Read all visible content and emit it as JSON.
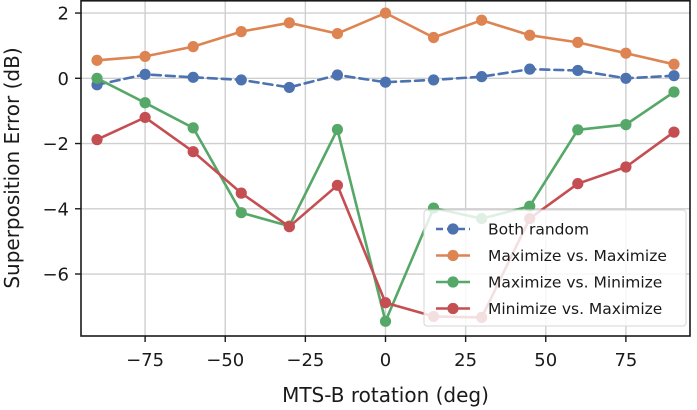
{
  "chart_data": {
    "type": "line",
    "title": "",
    "xlabel": "MTS-B rotation (deg)",
    "ylabel": "Superposition Error (dB)",
    "xlim": [
      -95,
      95
    ],
    "ylim": [
      -7.9,
      2.4
    ],
    "xticks": [
      -75,
      -50,
      -25,
      0,
      25,
      50,
      75
    ],
    "xtick_labels": [
      "−75",
      "−50",
      "−25",
      "0",
      "25",
      "50",
      "75"
    ],
    "yticks": [
      2,
      0,
      -2,
      -4,
      -6
    ],
    "ytick_labels": [
      "2",
      "0",
      "−2",
      "−4",
      "−6"
    ],
    "grid": true,
    "legend_position": "lower-right",
    "x": [
      -90,
      -75,
      -60,
      -45,
      -30,
      -15,
      0,
      15,
      30,
      45,
      60,
      75,
      90
    ],
    "series": [
      {
        "name": "Both random",
        "color": "#4c72b0",
        "dashed": true,
        "values": [
          -0.2,
          0.12,
          0.03,
          -0.05,
          -0.28,
          0.1,
          -0.12,
          -0.05,
          0.05,
          0.28,
          0.24,
          0.0,
          0.08
        ]
      },
      {
        "name": "Maximize vs. Maximize",
        "color": "#dd8452",
        "dashed": false,
        "values": [
          0.55,
          0.67,
          0.97,
          1.43,
          1.7,
          1.37,
          2.0,
          1.25,
          1.78,
          1.32,
          1.1,
          0.77,
          0.43
        ]
      },
      {
        "name": "Maximize vs. Minimize",
        "color": "#55a868",
        "dashed": false,
        "values": [
          0.0,
          -0.75,
          -1.52,
          -4.12,
          -4.53,
          -1.57,
          -7.45,
          -3.98,
          -4.3,
          -3.92,
          -1.58,
          -1.42,
          -0.42
        ]
      },
      {
        "name": "Minimize vs. Maximize",
        "color": "#c44e52",
        "dashed": false,
        "values": [
          -1.88,
          -1.2,
          -2.25,
          -3.52,
          -4.55,
          -3.28,
          -6.88,
          -7.3,
          -7.33,
          -4.3,
          -3.23,
          -2.72,
          -1.65
        ]
      }
    ]
  }
}
